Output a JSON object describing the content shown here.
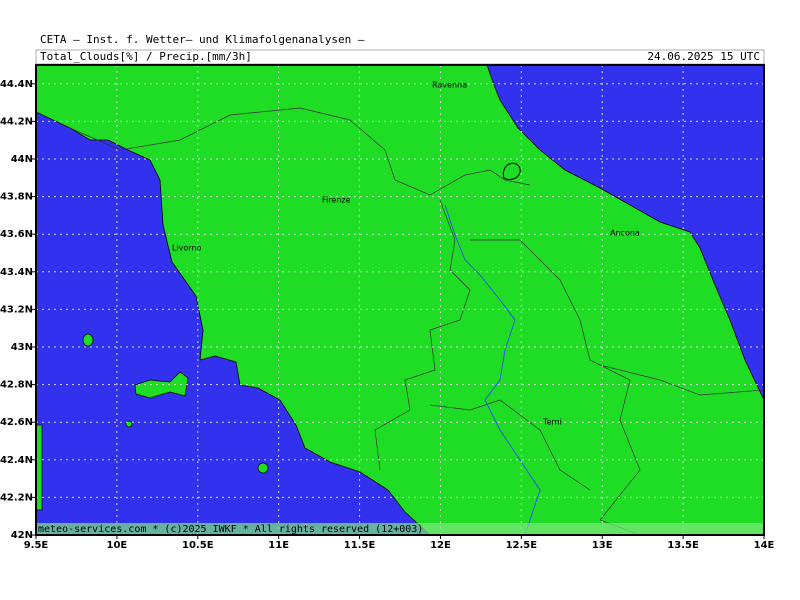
{
  "header": {
    "institute": "CETA — Inst. f. Wetter— und Klimafolgenanalysen —",
    "field": "Total_Clouds[%] / Precip.[mm/3h]",
    "valid": "24.06.2025 15 UTC"
  },
  "map": {
    "lonlim": [
      9.5,
      14
    ],
    "latlim": [
      42,
      44.5
    ],
    "lonticks": [
      {
        "value": 9.5,
        "label": "9.5E"
      },
      {
        "value": 10,
        "label": "10E"
      },
      {
        "value": 10.5,
        "label": "10.5E"
      },
      {
        "value": 11,
        "label": "11E"
      },
      {
        "value": 11.5,
        "label": "11.5E"
      },
      {
        "value": 12,
        "label": "12E"
      },
      {
        "value": 12.5,
        "label": "12.5E"
      },
      {
        "value": 13,
        "label": "13E"
      },
      {
        "value": 13.5,
        "label": "13.5E"
      },
      {
        "value": 14,
        "label": "14E"
      }
    ],
    "latticks": [
      {
        "value": 42,
        "label": "42N"
      },
      {
        "value": 42.2,
        "label": "42.2N"
      },
      {
        "value": 42.4,
        "label": "42.4N"
      },
      {
        "value": 42.6,
        "label": "42.6N"
      },
      {
        "value": 42.8,
        "label": "42.8N"
      },
      {
        "value": 43,
        "label": "43N"
      },
      {
        "value": 43.2,
        "label": "43.2N"
      },
      {
        "value": 43.4,
        "label": "43.4N"
      },
      {
        "value": 43.6,
        "label": "43.6N"
      },
      {
        "value": 43.8,
        "label": "43.8N"
      },
      {
        "value": 44,
        "label": "44N"
      },
      {
        "value": 44.2,
        "label": "44.2N"
      },
      {
        "value": 44.4,
        "label": "44.4N"
      }
    ],
    "cities": [
      "Ravenna",
      "Firenze",
      "Livorno",
      "Ancona",
      "Terni"
    ]
  },
  "footer": "meteo-services.com * (c)2025 IWKF * All rights reserved (12+003)"
}
